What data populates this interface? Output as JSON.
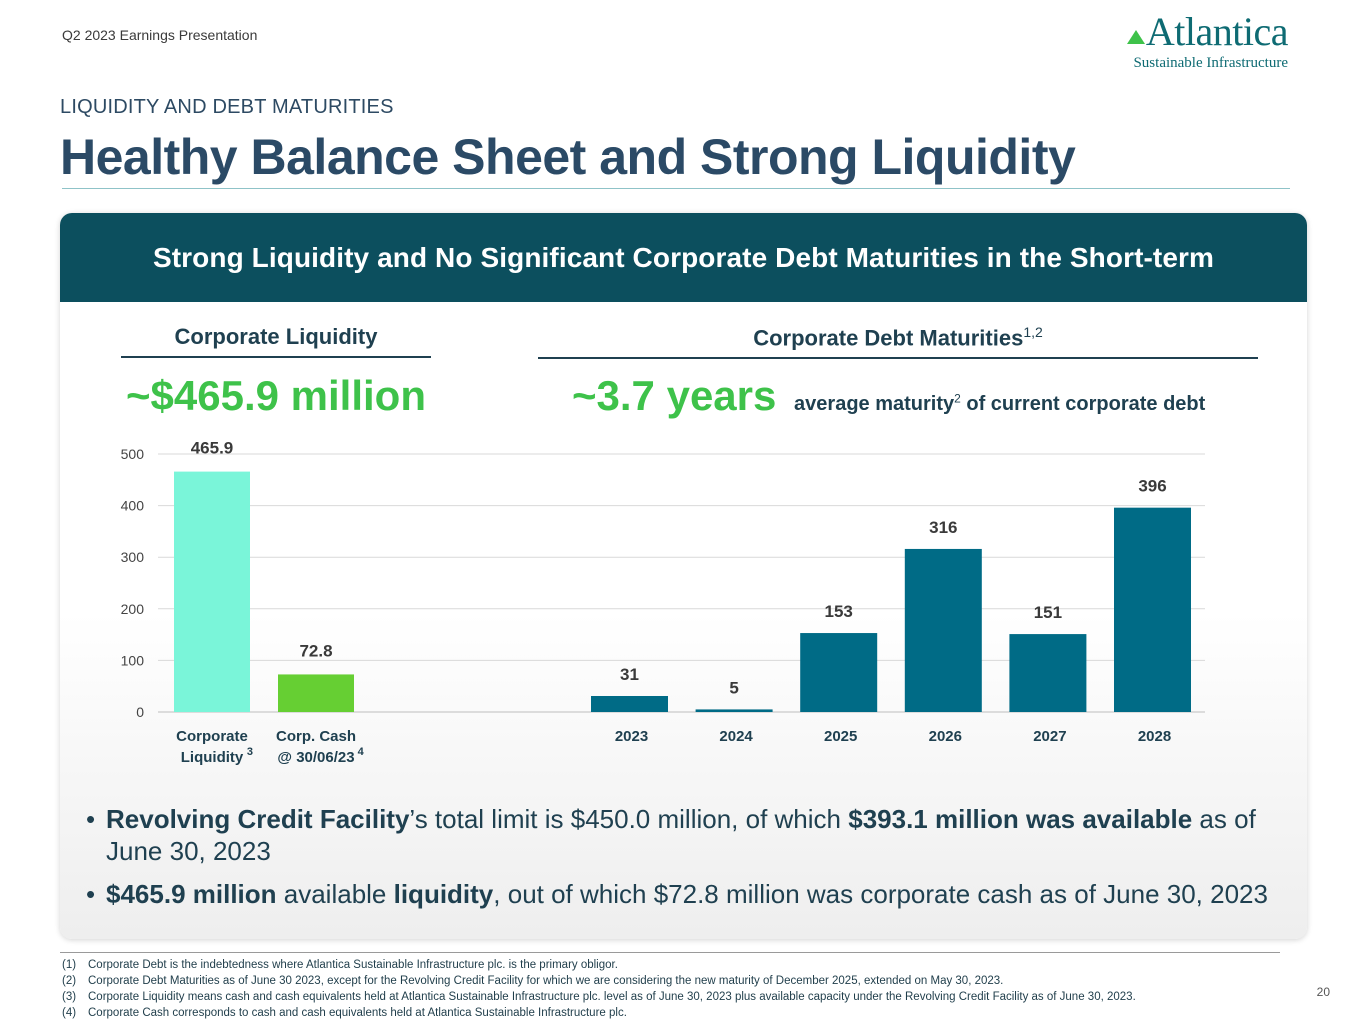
{
  "header": {
    "presentation": "Q2 2023 Earnings Presentation",
    "logo_name": "Atlantica",
    "logo_tagline": "Sustainable Infrastructure",
    "section": "LIQUIDITY AND DEBT MATURITIES",
    "title": "Healthy Balance Sheet and Strong Liquidity"
  },
  "panel": {
    "banner": "Strong Liquidity and No Significant Corporate Debt Maturities in the Short-term",
    "left": {
      "heading": "Corporate Liquidity",
      "stat": "~$465.9 million"
    },
    "right": {
      "heading": "Corporate Debt Maturities",
      "heading_sup": "1,2",
      "stat": "~3.7 years",
      "note_a": "average maturity",
      "note_sup": "2",
      "note_b": "of current corporate debt"
    }
  },
  "colors": {
    "liquidity": "#7af5d9",
    "cash": "#66cf33",
    "debt": "#006b86",
    "banner": "#0c4f5e",
    "stat_green": "#3ec24a"
  },
  "chart_data": [
    {
      "type": "bar",
      "title": "Corporate Liquidity",
      "categories": [
        "Corporate Liquidity",
        "Corp. Cash @ 30/06/23"
      ],
      "category_lines": [
        [
          "Corporate",
          "Liquidity"
        ],
        [
          "Corp. Cash",
          "@ 30/06/23"
        ]
      ],
      "category_sups": [
        "3",
        "4"
      ],
      "values": [
        465.9,
        72.8
      ],
      "value_labels": [
        "465.9",
        "72.8"
      ],
      "bar_colors": [
        "#7af5d9",
        "#66cf33"
      ],
      "ylim": [
        0,
        500
      ],
      "yticks": [
        0,
        100,
        200,
        300,
        400,
        500
      ],
      "ytick_labels": [
        "0",
        "100",
        "200",
        "300",
        "400",
        "500"
      ],
      "grid": true
    },
    {
      "type": "bar",
      "title": "Corporate Debt Maturities",
      "categories": [
        "2023",
        "2024",
        "2025",
        "2026",
        "2027",
        "2028"
      ],
      "values": [
        31,
        5,
        153,
        316,
        151,
        396
      ],
      "value_labels": [
        "31",
        "5",
        "153",
        "316",
        "151",
        "396"
      ],
      "bar_color": "#006b86",
      "ylim": [
        0,
        500
      ],
      "grid": true
    }
  ],
  "bullets": [
    {
      "parts": [
        {
          "text": "Revolving Credit Facility",
          "bold": true
        },
        {
          "text": "’s total limit is $450.0 million, of which ",
          "bold": false
        },
        {
          "text": "$393.1 million was available",
          "bold": true
        },
        {
          "text": " as of June 30, 2023",
          "bold": false
        }
      ]
    },
    {
      "parts": [
        {
          "text": "$465.9 million",
          "bold": true
        },
        {
          "text": " available ",
          "bold": false
        },
        {
          "text": "liquidity",
          "bold": true
        },
        {
          "text": ", out of which $72.8 million was corporate cash as of June 30, 2023",
          "bold": false
        }
      ]
    }
  ],
  "footnotes": [
    {
      "num": "(1)",
      "text": "Corporate Debt is the indebtedness where Atlantica Sustainable Infrastructure plc. is the primary obligor."
    },
    {
      "num": "(2)",
      "text": "Corporate Debt Maturities as of June 30 2023, except for the Revolving Credit Facility for which we are considering the new maturity of December 2025, extended on May 30, 2023."
    },
    {
      "num": "(3)",
      "text": "Corporate Liquidity means cash and cash equivalents held at Atlantica Sustainable Infrastructure plc. level as of June 30, 2023 plus available capacity under the Revolving Credit Facility as of June 30, 2023."
    },
    {
      "num": "(4)",
      "text": "Corporate Cash corresponds to cash and cash equivalents held at Atlantica Sustainable Infrastructure plc."
    }
  ],
  "page_number": "20"
}
